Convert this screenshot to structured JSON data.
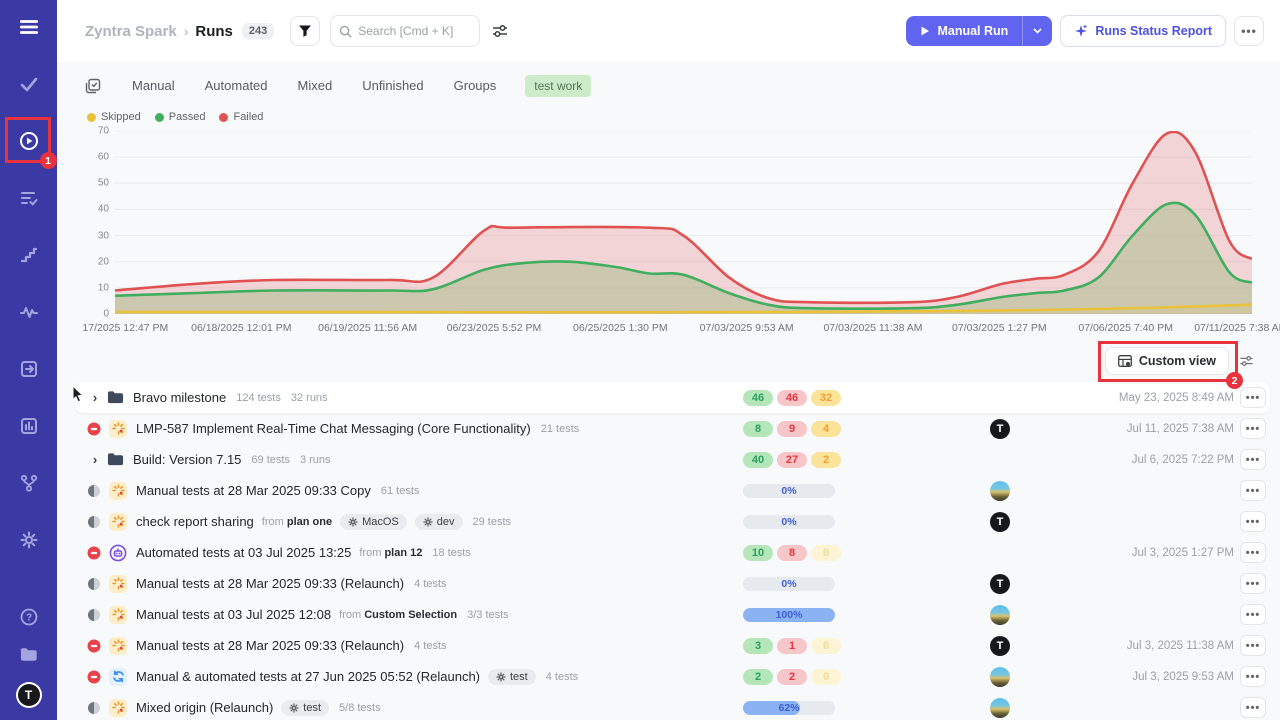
{
  "annotations": {
    "step1": "1",
    "step2": "2",
    "color": "#e8323e"
  },
  "sidebar": {
    "top_icon": "hamburger-menu",
    "items": [
      {
        "icon": "check"
      },
      {
        "icon": "play-circle",
        "active": true,
        "annotated": true
      },
      {
        "icon": "list-check"
      },
      {
        "icon": "steps"
      },
      {
        "icon": "pulse"
      },
      {
        "icon": "import"
      },
      {
        "icon": "bar-chart"
      },
      {
        "icon": "branch"
      },
      {
        "icon": "gear"
      }
    ],
    "bottom_items": [
      {
        "icon": "help"
      },
      {
        "icon": "folder"
      }
    ],
    "avatar_letter": "T"
  },
  "header": {
    "breadcrumb": {
      "project": "Zyntra Spark",
      "separator": "›",
      "page": "Runs",
      "count": "243"
    },
    "search": {
      "placeholder": "Search [Cmd + K]"
    },
    "buttons": {
      "manual_run": "Manual Run",
      "runs_status_report": "Runs Status Report",
      "more": "•••"
    }
  },
  "tabs": {
    "items": [
      "Manual",
      "Automated",
      "Mixed",
      "Unfinished",
      "Groups"
    ],
    "filter_badge": "test work"
  },
  "chart_data": {
    "type": "area",
    "legend": [
      "Skipped",
      "Passed",
      "Failed"
    ],
    "legend_colors": {
      "Skipped": "#e8c23a",
      "Passed": "#3fae5e",
      "Failed": "#e05252"
    },
    "ylim": [
      0,
      70
    ],
    "y_ticks": [
      0,
      10,
      20,
      30,
      40,
      50,
      60,
      70
    ],
    "grid": true,
    "legend_position": "top-left",
    "x_ticks": [
      "17/2025 12:47 PM",
      "06/18/2025 12:01 PM",
      "06/19/2025 11:56 AM",
      "06/23/2025 5:52 PM",
      "06/25/2025 1:30 PM",
      "07/03/2025 9:53 AM",
      "07/03/2025 11:38 AM",
      "07/03/2025 1:27 PM",
      "07/06/2025 7:40 PM",
      "07/11/2025 7:38 AM"
    ],
    "series": [
      {
        "name": "Failed",
        "stroke": "#e05252",
        "fill": "rgba(224,82,82,0.22)",
        "points": [
          [
            0,
            9
          ],
          [
            0.07,
            11.5
          ],
          [
            0.14,
            13
          ],
          [
            0.24,
            13
          ],
          [
            0.28,
            14
          ],
          [
            0.325,
            32
          ],
          [
            0.35,
            33
          ],
          [
            0.47,
            33
          ],
          [
            0.5,
            30
          ],
          [
            0.54,
            14
          ],
          [
            0.575,
            6
          ],
          [
            0.61,
            4.5
          ],
          [
            0.7,
            4.5
          ],
          [
            0.74,
            6.5
          ],
          [
            0.78,
            11.5
          ],
          [
            0.81,
            13.5
          ],
          [
            0.835,
            15
          ],
          [
            0.865,
            24
          ],
          [
            0.895,
            50
          ],
          [
            0.925,
            69
          ],
          [
            0.95,
            62
          ],
          [
            0.98,
            28
          ],
          [
            1,
            21
          ]
        ]
      },
      {
        "name": "Passed",
        "stroke": "#3fae5e",
        "fill": "rgba(106,168,79,0.28)",
        "points": [
          [
            0,
            7
          ],
          [
            0.07,
            8
          ],
          [
            0.14,
            9
          ],
          [
            0.24,
            9
          ],
          [
            0.28,
            9.5
          ],
          [
            0.325,
            17
          ],
          [
            0.36,
            19.5
          ],
          [
            0.4,
            20
          ],
          [
            0.44,
            18
          ],
          [
            0.47,
            15.5
          ],
          [
            0.5,
            15
          ],
          [
            0.54,
            8
          ],
          [
            0.575,
            3.5
          ],
          [
            0.61,
            2.2
          ],
          [
            0.7,
            2.2
          ],
          [
            0.74,
            3.5
          ],
          [
            0.78,
            6.5
          ],
          [
            0.81,
            8
          ],
          [
            0.835,
            9
          ],
          [
            0.865,
            14
          ],
          [
            0.895,
            30
          ],
          [
            0.925,
            42
          ],
          [
            0.95,
            38
          ],
          [
            0.98,
            16
          ],
          [
            1,
            12
          ]
        ]
      },
      {
        "name": "Skipped",
        "stroke": "#e8c23a",
        "fill": "rgba(232,194,58,0.12)",
        "points": [
          [
            0,
            0.8
          ],
          [
            0.2,
            0.8
          ],
          [
            0.4,
            0.7
          ],
          [
            0.6,
            0.8
          ],
          [
            0.75,
            1.2
          ],
          [
            0.85,
            1.8
          ],
          [
            0.93,
            2.6
          ],
          [
            1,
            3.6
          ]
        ]
      }
    ]
  },
  "custom_view": {
    "label": "Custom view",
    "icon": "table-view-icon",
    "side_icon": "sliders-icon"
  },
  "list": {
    "from_word": "from",
    "rows": [
      {
        "type": "group",
        "cursor": true,
        "highlight": true,
        "expander": true,
        "kind": "folder",
        "title": "Bravo milestone",
        "meta": [
          "124 tests",
          "32 runs"
        ],
        "stats": {
          "passed": "46",
          "failed": "46",
          "skipped": "32",
          "skippedFaded": false
        },
        "date": "May 23, 2025 8:49 AM"
      },
      {
        "type": "run",
        "status": "stopped",
        "kind": "manual",
        "title": "LMP-587 Implement Real-Time Chat Messaging (Core Functionality)",
        "meta": [
          "21 tests"
        ],
        "stats": {
          "passed": "8",
          "failed": "9",
          "skipped": "4",
          "skippedFaded": false
        },
        "avatar": "dark",
        "date": "Jul 11, 2025 7:38 AM"
      },
      {
        "type": "group",
        "expander": true,
        "kind": "folder",
        "title": "Build: Version 7.15",
        "meta": [
          "69 tests",
          "3 runs"
        ],
        "stats": {
          "passed": "40",
          "failed": "27",
          "skipped": "2",
          "skippedFaded": false
        },
        "date": "Jul 6, 2025 7:22 PM"
      },
      {
        "type": "run",
        "status": "half",
        "kind": "manual",
        "title": "Manual tests at 28 Mar 2025 09:33 Copy",
        "meta": [
          "61 tests"
        ],
        "progress": {
          "pct": 0,
          "label": "0%"
        },
        "avatar": "photo",
        "date": ""
      },
      {
        "type": "run",
        "status": "half",
        "kind": "manual",
        "title": "check report sharing",
        "from": "plan one",
        "tags": [
          "MacOS",
          "dev"
        ],
        "meta": [
          "29 tests"
        ],
        "progress": {
          "pct": 0,
          "label": "0%"
        },
        "avatar": "dark",
        "date": ""
      },
      {
        "type": "run",
        "status": "stopped",
        "kind": "auto",
        "title": "Automated tests at 03 Jul 2025 13:25",
        "from": "plan 12",
        "meta": [
          "18 tests"
        ],
        "stats": {
          "passed": "10",
          "failed": "8",
          "skipped": "0",
          "skippedFaded": true
        },
        "date": "Jul 3, 2025 1:27 PM"
      },
      {
        "type": "run",
        "status": "half",
        "kind": "manual",
        "title": "Manual tests at 28 Mar 2025 09:33 (Relaunch)",
        "meta": [
          "4 tests"
        ],
        "progress": {
          "pct": 0,
          "label": "0%"
        },
        "avatar": "dark",
        "date": ""
      },
      {
        "type": "run",
        "status": "half",
        "kind": "manual",
        "title": "Manual tests at 03 Jul 2025 12:08",
        "from": "Custom Selection",
        "meta": [
          "3/3 tests"
        ],
        "progress": {
          "pct": 100,
          "label": "100%"
        },
        "avatar": "photo",
        "date": ""
      },
      {
        "type": "run",
        "status": "stopped",
        "kind": "manual",
        "title": "Manual tests at 28 Mar 2025 09:33 (Relaunch)",
        "meta": [
          "4 tests"
        ],
        "stats": {
          "passed": "3",
          "failed": "1",
          "skipped": "0",
          "skippedFaded": true
        },
        "avatar": "dark",
        "date": "Jul 3, 2025 11:38 AM"
      },
      {
        "type": "run",
        "status": "stopped",
        "kind": "mixed",
        "title": "Manual & automated tests at 27 Jun 2025 05:52 (Relaunch)",
        "tags": [
          "test"
        ],
        "meta": [
          "4 tests"
        ],
        "stats": {
          "passed": "2",
          "failed": "2",
          "skipped": "0",
          "skippedFaded": true
        },
        "avatar": "photo",
        "date": "Jul 3, 2025 9:53 AM"
      },
      {
        "type": "run",
        "status": "half",
        "kind": "manual",
        "title": "Mixed origin (Relaunch)",
        "tags": [
          "test"
        ],
        "meta": [
          "5/8 tests"
        ],
        "progress": {
          "pct": 62,
          "label": "62%"
        },
        "avatar": "photo",
        "date": ""
      }
    ]
  }
}
